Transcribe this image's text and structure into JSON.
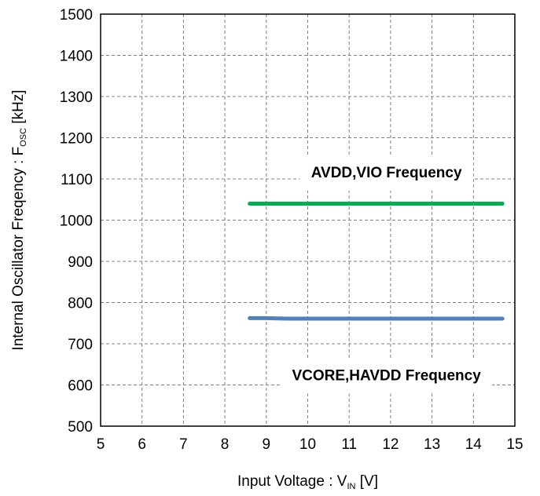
{
  "chart_data": {
    "type": "line",
    "xlabel": {
      "main": "Input Voltage : V",
      "sub": "IN",
      "unit": " [V]"
    },
    "ylabel": {
      "main": "Internal Oscillator Freqency : F",
      "sub": "OSC",
      "unit": " [kHz]"
    },
    "xlim": [
      5,
      15
    ],
    "ylim": [
      500,
      1500
    ],
    "x_ticks": [
      5,
      6,
      7,
      8,
      9,
      10,
      11,
      12,
      13,
      14,
      15
    ],
    "y_ticks": [
      500,
      600,
      700,
      800,
      900,
      1000,
      1100,
      1200,
      1300,
      1400,
      1500
    ],
    "grid": true,
    "series": [
      {
        "color": "#00b050",
        "x": [
          8.6,
          9.5,
          10.5,
          11.5,
          12.5,
          13.5,
          14.7
        ],
        "y": [
          1040,
          1040,
          1040,
          1040,
          1040,
          1040,
          1040
        ]
      },
      {
        "color": "#4f81bd",
        "x": [
          8.6,
          9.0,
          9.5,
          10.5,
          11.5,
          12.5,
          13.5,
          14.7
        ],
        "y": [
          762,
          762,
          761,
          761,
          761,
          761,
          761,
          761
        ]
      }
    ],
    "annotations": [
      {
        "text": "AVDD,VIO Frequency",
        "x": 11.9,
        "y": 1117
      },
      {
        "text": "VCORE,HAVDD Frequency",
        "x": 11.9,
        "y": 625
      }
    ]
  }
}
